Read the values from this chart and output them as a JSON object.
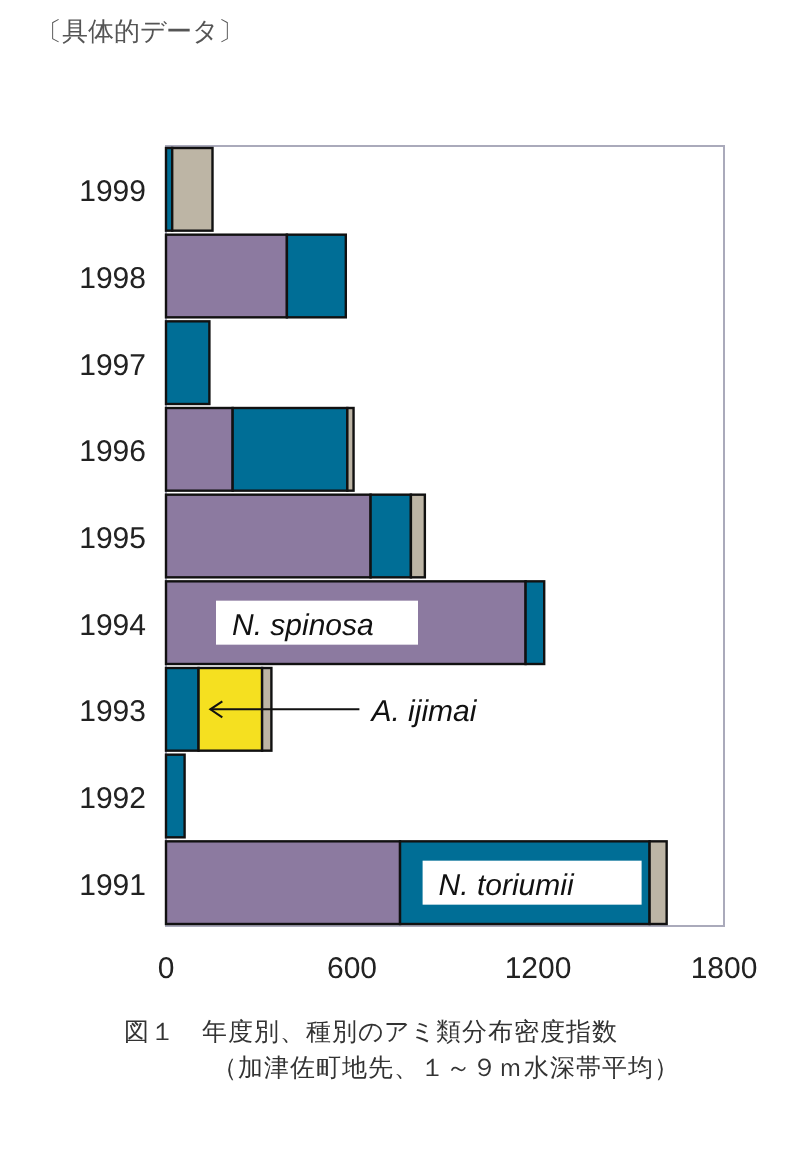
{
  "chart_data": {
    "type": "bar",
    "orientation": "horizontal",
    "stacked": true,
    "title": "図１　年度別、種別のアミ類分布密度指数",
    "subtitle": "（加津佐町地先、１～９ｍ水深帯平均）",
    "annotations": [
      "〔具体的データ〕"
    ],
    "categories": [
      "1999",
      "1998",
      "1997",
      "1996",
      "1995",
      "1994",
      "1993",
      "1992",
      "1991"
    ],
    "series": [
      {
        "name": "N. spinosa",
        "color": "#8c7aa0",
        "values": [
          null,
          390,
          null,
          215,
          660,
          1160,
          null,
          null,
          755
        ]
      },
      {
        "name": "N. toriumii",
        "color": "#006e96",
        "values": [
          20,
          190,
          140,
          370,
          130,
          60,
          105,
          60,
          805
        ]
      },
      {
        "name": "A. ijimai",
        "color": "#f5e020",
        "values": [
          null,
          null,
          null,
          null,
          null,
          null,
          205,
          null,
          null
        ]
      },
      {
        "color": "#bdb5a5",
        "values": [
          130,
          null,
          null,
          20,
          45,
          null,
          30,
          null,
          55
        ]
      }
    ],
    "xlim": [
      0,
      1800
    ],
    "xticks": [
      0,
      600,
      1200,
      1800
    ],
    "grid": false
  }
}
